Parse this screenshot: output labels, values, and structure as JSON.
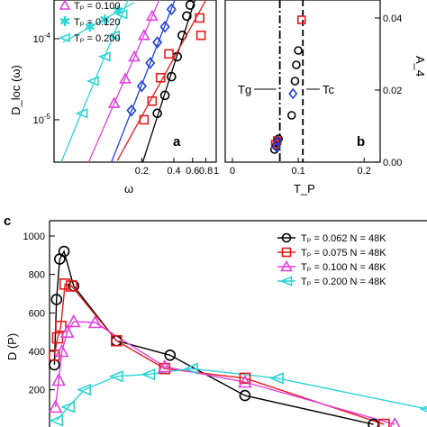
{
  "colors": {
    "black": "#000000",
    "red": "#e41a1c",
    "magenta": "#e040e0",
    "blue": "#1f3fd6",
    "cyan": "#2ad4d4"
  },
  "chart_data": [
    {
      "panel": "a",
      "type": "scatter",
      "xlabel": "ω",
      "ylabel": "D_loc (ω)",
      "xscale": "log",
      "yscale": "log",
      "xlim": [
        0.03,
        1.0
      ],
      "ylim": [
        3e-06,
        0.0003
      ],
      "x_tick_labels": [
        "0.2",
        "0.4",
        "0.6",
        "0.8",
        "1"
      ],
      "y_tick_labels": [
        "10^-5",
        "10^-4"
      ],
      "legend_visible": [
        "T_p = 0.100",
        "T_p = 0.120",
        "T_p = 0.200"
      ],
      "series": [
        {
          "name": "",
          "color": "black",
          "marker": "circle",
          "x": [
            0.28,
            0.33,
            0.38,
            0.43,
            0.48,
            0.53,
            0.57
          ],
          "y": [
            1.2e-05,
            2e-05,
            3.4e-05,
            6e-05,
            0.00011,
            0.00019,
            0.00026
          ]
        },
        {
          "name": "",
          "color": "red",
          "marker": "square",
          "x": [
            0.21,
            0.25,
            0.3,
            0.36,
            0.7,
            0.72
          ],
          "y": [
            1e-05,
            1.7e-05,
            3.3e-05,
            6.5e-05,
            0.00018,
            0.00011
          ]
        },
        {
          "name": "",
          "color": "blue",
          "marker": "diamond",
          "x": [
            0.16,
            0.2,
            0.24,
            0.28,
            0.33,
            0.38
          ],
          "y": [
            1.3e-05,
            2.6e-05,
            5e-05,
            9e-05,
            0.00014,
            0.00023
          ]
        },
        {
          "name": "T_p = 0.100",
          "color": "magenta",
          "marker": "triangle-up",
          "x": [
            0.11,
            0.14,
            0.17,
            0.21,
            0.25
          ],
          "y": [
            1.6e-05,
            3.2e-05,
            6e-05,
            0.00011,
            0.00019
          ]
        },
        {
          "name": "T_p = 0.120",
          "color": "cyan",
          "marker": "star",
          "x": [
            0.065,
            0.09,
            0.12
          ],
          "y": [
            0.00014,
            0.00017,
            0.00022
          ]
        },
        {
          "name": "T_p = 0.200",
          "color": "cyan",
          "marker": "triangle-left",
          "x": [
            0.055,
            0.07,
            0.09,
            0.11,
            0.13
          ],
          "y": [
            1.2e-05,
            3e-05,
            6e-05,
            0.00011,
            0.0002
          ]
        }
      ]
    },
    {
      "panel": "b",
      "type": "scatter",
      "xlabel": "T_P",
      "ylabel": "A_4",
      "xlim": [
        0,
        0.2
      ],
      "ylim": [
        0,
        0.045
      ],
      "x_tick_labels": [
        "0",
        "0.1",
        "0.2"
      ],
      "y_tick_labels": [
        "0.00",
        "0.02",
        "0.04"
      ],
      "annotations": [
        "T_g",
        "T_c"
      ],
      "vlines": [
        {
          "x": 0.072,
          "style": "dash-dot",
          "label": "T_g"
        },
        {
          "x": 0.107,
          "style": "dashed",
          "label": "T_c"
        }
      ],
      "series": [
        {
          "name": "",
          "color": "black",
          "marker": "circle",
          "x": [
            0.064,
            0.066,
            0.068,
            0.07,
            0.09,
            0.095,
            0.097,
            0.1
          ],
          "y": [
            0.0035,
            0.0045,
            0.0055,
            0.0065,
            0.013,
            0.0225,
            0.027,
            0.031
          ]
        },
        {
          "name": "",
          "color": "red",
          "marker": "square",
          "x": [
            0.105,
            0.065,
            0.068
          ],
          "y": [
            0.0395,
            0.005,
            0.006
          ]
        },
        {
          "name": "",
          "color": "blue",
          "marker": "diamond",
          "x": [
            0.067,
            0.069,
            0.092
          ],
          "y": [
            0.0042,
            0.0058,
            0.019
          ]
        }
      ]
    },
    {
      "panel": "c",
      "type": "line",
      "xlabel": "",
      "ylabel": "D (P)",
      "ylim": [
        0,
        1000
      ],
      "xlim": [
        0,
        350
      ],
      "y_tick_labels": [
        "200",
        "400",
        "600",
        "800",
        "1000"
      ],
      "legend": [
        {
          "label": "T_p = 0.062  N = 48K",
          "color": "black",
          "marker": "circle"
        },
        {
          "label": "T_p = 0.075  N = 48K",
          "color": "red",
          "marker": "square"
        },
        {
          "label": "T_p = 0.100  N = 48K",
          "color": "magenta",
          "marker": "triangle-up"
        },
        {
          "label": "T_p = 0.200  N = 48K",
          "color": "cyan",
          "marker": "triangle-left"
        }
      ],
      "legend_position": "top-right",
      "series": [
        {
          "name": "T_p = 0.062  N = 48K",
          "color": "black",
          "marker": "circle",
          "x": [
            2,
            4,
            7,
            11,
            20,
            60,
            110,
            180,
            300
          ],
          "y": [
            330,
            670,
            880,
            920,
            740,
            455,
            380,
            170,
            20
          ]
        },
        {
          "name": "T_p = 0.075  N = 48K",
          "color": "red",
          "marker": "square",
          "x": [
            2,
            5,
            8,
            12,
            18,
            60,
            105,
            180,
            310
          ],
          "y": [
            380,
            470,
            530,
            750,
            740,
            455,
            310,
            260,
            20
          ]
        },
        {
          "name": "T_p = 0.100  N = 48K",
          "color": "magenta",
          "marker": "triangle-up",
          "x": [
            3,
            6,
            9,
            14,
            20,
            40,
            105,
            180,
            320
          ],
          "y": [
            110,
            250,
            400,
            500,
            555,
            550,
            320,
            240,
            20
          ]
        },
        {
          "name": "T_p = 0.200  N = 48K",
          "color": "cyan",
          "marker": "triangle-left",
          "x": [
            4,
            15,
            30,
            60,
            90,
            130,
            210,
            350
          ],
          "y": [
            40,
            110,
            200,
            270,
            280,
            310,
            260,
            100
          ]
        }
      ]
    }
  ]
}
